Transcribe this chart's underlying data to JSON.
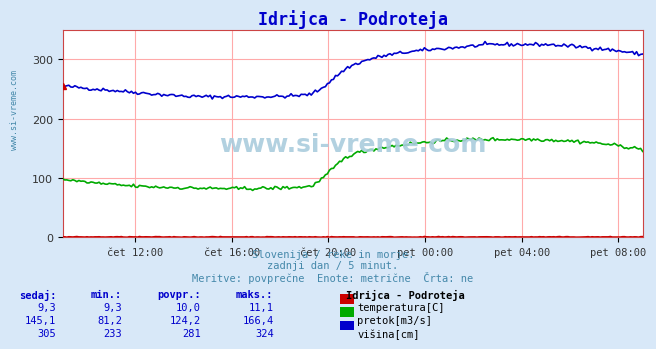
{
  "title": "Idrijca - Podroteja",
  "title_color": "#0000cc",
  "bg_color": "#d8e8f8",
  "plot_bg_color": "#ffffff",
  "grid_color": "#ffaaaa",
  "xlabel_ticks": [
    "čet 12:00",
    "čet 16:00",
    "čet 20:00",
    "pet 00:00",
    "pet 04:00",
    "pet 08:00"
  ],
  "tick_positions": [
    0.125,
    0.292,
    0.458,
    0.625,
    0.792,
    0.958
  ],
  "ylim": [
    0,
    350
  ],
  "yticks": [
    0,
    100,
    200,
    300
  ],
  "subtitle_lines": [
    "Slovenija / reke in morje.",
    "zadnji dan / 5 minut.",
    "Meritve: povprečne  Enote: metrične  Črta: ne"
  ],
  "subtitle_color": "#4488aa",
  "watermark": "www.si-vreme.com",
  "watermark_color": "#aaccdd",
  "sidebar_text": "www.si-vreme.com",
  "sidebar_color": "#4488aa",
  "table_headers": [
    "sedaj:",
    "min.:",
    "povpr.:",
    "maks.:"
  ],
  "table_station": "Idrijca - Podroteja",
  "table_data": [
    [
      "9,3",
      "9,3",
      "10,0",
      "11,1",
      "#cc0000",
      "temperatura[C]"
    ],
    [
      "145,1",
      "81,2",
      "124,2",
      "166,4",
      "#00aa00",
      "pretok[m3/s]"
    ],
    [
      "305",
      "233",
      "281",
      "324",
      "#0000cc",
      "višina[cm]"
    ]
  ],
  "table_color": "#0000cc",
  "temp_color": "#cc0000",
  "flow_color": "#00aa00",
  "height_color": "#0000cc",
  "n_points": 288
}
